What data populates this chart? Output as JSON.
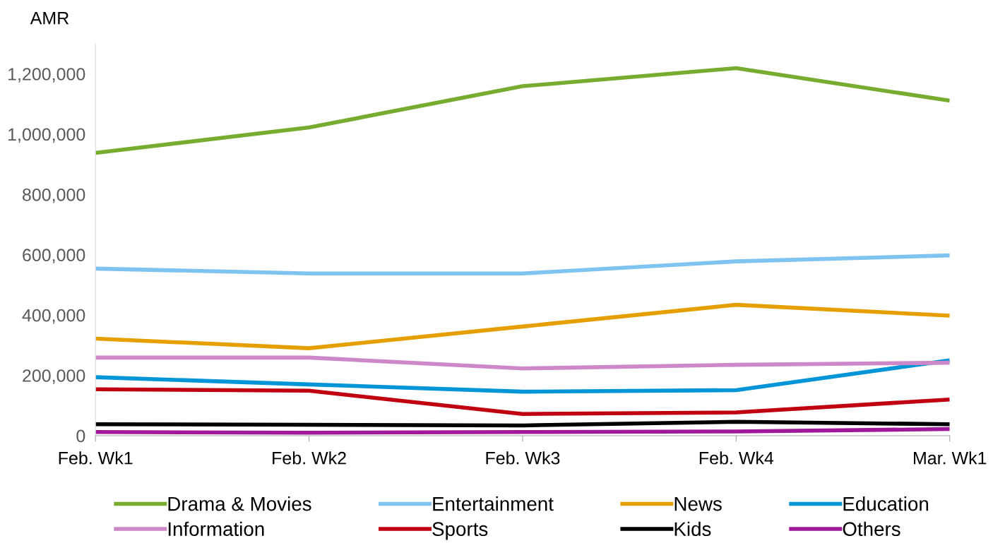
{
  "chart_data": {
    "type": "line",
    "ylabel": "AMR",
    "categories": [
      "Feb. Wk1",
      "Feb. Wk2",
      "Feb. Wk3",
      "Feb. Wk4",
      "Mar. Wk1"
    ],
    "series": [
      {
        "name": "Drama & Movies",
        "color": "#77ac30",
        "values": [
          938000,
          1022000,
          1159000,
          1219000,
          1111000
        ]
      },
      {
        "name": "Entertainment",
        "color": "#7fc3f0",
        "values": [
          554000,
          538000,
          538000,
          578000,
          598000
        ]
      },
      {
        "name": "News",
        "color": "#e69f00",
        "values": [
          322000,
          290000,
          362000,
          434000,
          398000
        ]
      },
      {
        "name": "Education",
        "color": "#0095d6",
        "values": [
          194000,
          170000,
          146000,
          151000,
          250000
        ]
      },
      {
        "name": "Information",
        "color": "#cc88c8",
        "values": [
          259000,
          259000,
          223000,
          235000,
          242000
        ]
      },
      {
        "name": "Sports",
        "color": "#c00010",
        "values": [
          154000,
          149000,
          72000,
          77000,
          120000
        ]
      },
      {
        "name": "Kids",
        "color": "#000000",
        "values": [
          38000,
          36000,
          34000,
          46000,
          38000
        ]
      },
      {
        "name": "Others",
        "color": "#a0189a",
        "values": [
          12000,
          10000,
          12000,
          14000,
          22000
        ]
      }
    ],
    "ylim": [
      0,
      1300000
    ],
    "yticks": [
      {
        "value": 0,
        "label": "0"
      },
      {
        "value": 200000,
        "label": "200,000"
      },
      {
        "value": 400000,
        "label": "400,000"
      },
      {
        "value": 600000,
        "label": "600,000"
      },
      {
        "value": 800000,
        "label": "800,000"
      },
      {
        "value": 1000000,
        "label": "1,000,000"
      },
      {
        "value": 1200000,
        "label": "1,200,000"
      }
    ],
    "grid": false,
    "legend": "bottom",
    "marker": "none",
    "line_style": "solid"
  }
}
